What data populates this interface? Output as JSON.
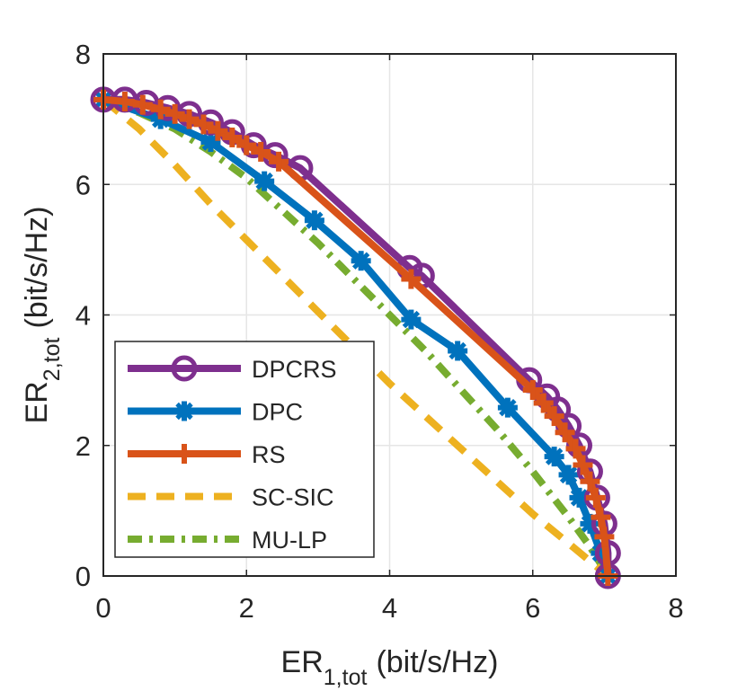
{
  "chart_data": {
    "type": "line",
    "title": "",
    "xlabel": {
      "main": "ER",
      "sub": "1,tot",
      "unit": "(bit/s/Hz)"
    },
    "ylabel": {
      "main": "ER",
      "sub": "2,tot",
      "unit": "(bit/s/Hz)"
    },
    "xlim": [
      0,
      8
    ],
    "ylim": [
      0,
      8
    ],
    "xticks": [
      0,
      2,
      4,
      6,
      8
    ],
    "yticks": [
      0,
      2,
      4,
      6,
      8
    ],
    "xtick_labels": [
      "0",
      "2",
      "4",
      "6",
      "8"
    ],
    "ytick_labels": [
      "0",
      "2",
      "4",
      "6",
      "8"
    ],
    "grid": true,
    "legend_position": "bottom-left",
    "series": [
      {
        "name": "DPCRS",
        "color": "#7E2F8E",
        "line": "solid",
        "marker": "circle-open",
        "x": [
          0.0,
          0.3,
          0.6,
          0.9,
          1.2,
          1.5,
          1.8,
          2.1,
          2.4,
          2.75,
          4.28,
          4.45,
          5.95,
          6.2,
          6.35,
          6.5,
          6.65,
          6.8,
          6.9,
          7.0,
          7.05,
          7.05
        ],
        "y": [
          7.3,
          7.3,
          7.25,
          7.17,
          7.08,
          6.95,
          6.8,
          6.6,
          6.45,
          6.25,
          4.72,
          4.6,
          3.0,
          2.75,
          2.55,
          2.3,
          2.0,
          1.6,
          1.2,
          0.8,
          0.35,
          0.0
        ]
      },
      {
        "name": "DPC",
        "color": "#0072BD",
        "line": "solid",
        "marker": "asterisk",
        "x": [
          0.0,
          0.8,
          1.5,
          2.25,
          2.95,
          3.6,
          4.3,
          4.95,
          5.65,
          6.3,
          6.5,
          6.65,
          6.8,
          6.95,
          7.05
        ],
        "y": [
          7.3,
          7.0,
          6.65,
          6.05,
          5.45,
          4.83,
          3.93,
          3.45,
          2.58,
          1.83,
          1.55,
          1.2,
          0.8,
          0.35,
          0.0
        ]
      },
      {
        "name": "RS",
        "color": "#D95319",
        "line": "solid",
        "marker": "plus",
        "x": [
          0.0,
          0.3,
          0.55,
          0.8,
          1.0,
          1.2,
          1.4,
          1.6,
          1.8,
          2.0,
          2.2,
          2.45,
          4.3,
          6.0,
          6.15,
          6.3,
          6.45,
          6.6,
          6.7,
          6.8,
          6.88,
          6.95,
          7.0,
          7.05
        ],
        "y": [
          7.3,
          7.27,
          7.22,
          7.15,
          7.08,
          7.0,
          6.92,
          6.82,
          6.72,
          6.6,
          6.5,
          6.35,
          4.55,
          2.85,
          2.65,
          2.45,
          2.2,
          1.95,
          1.7,
          1.45,
          1.2,
          0.9,
          0.6,
          0.0
        ]
      },
      {
        "name": "SC-SIC",
        "color": "#EDB120",
        "line": "dashed",
        "marker": "none",
        "x": [
          0.0,
          0.5,
          1.0,
          1.5,
          2.0,
          2.5,
          3.0,
          3.5,
          4.0,
          4.5,
          5.0,
          5.5,
          6.0,
          6.5,
          7.05
        ],
        "y": [
          7.3,
          6.85,
          6.3,
          5.7,
          5.15,
          4.6,
          4.05,
          3.5,
          2.95,
          2.45,
          1.95,
          1.45,
          0.95,
          0.5,
          0.0
        ]
      },
      {
        "name": "MU-LP",
        "color": "#77AC30",
        "line": "dashdot",
        "marker": "none",
        "x": [
          0.0,
          0.5,
          1.0,
          1.5,
          2.0,
          2.5,
          3.0,
          3.5,
          4.0,
          4.5,
          5.0,
          5.5,
          6.0,
          6.5,
          6.8,
          7.05
        ],
        "y": [
          7.3,
          7.1,
          6.85,
          6.5,
          6.1,
          5.6,
          5.1,
          4.55,
          4.0,
          3.45,
          2.85,
          2.25,
          1.6,
          0.9,
          0.45,
          0.0
        ]
      }
    ]
  }
}
